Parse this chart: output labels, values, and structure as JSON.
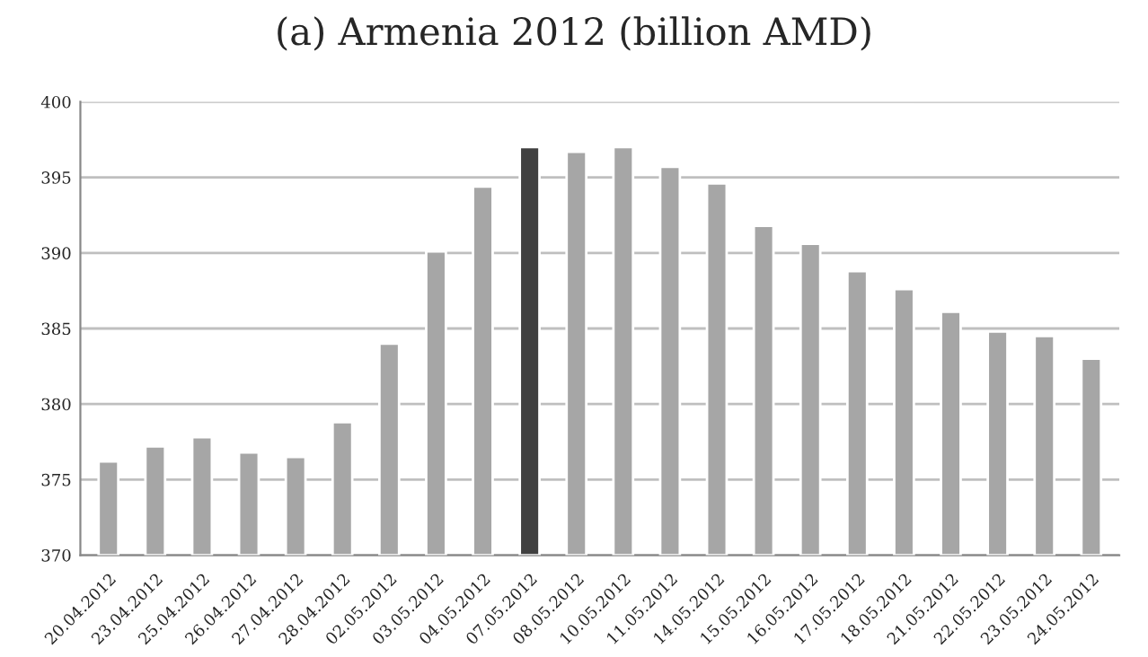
{
  "chart_data": {
    "type": "bar",
    "title": "(a) Armenia 2012 (billion AMD)",
    "categories": [
      "20.04.2012",
      "23.04.2012",
      "25.04.2012",
      "26.04.2012",
      "27.04.2012",
      "28.04.2012",
      "02.05.2012",
      "03.05.2012",
      "04.05.2012",
      "07.05.2012",
      "08.05.2012",
      "10.05.2012",
      "11.05.2012",
      "14.05.2012",
      "15.05.2012",
      "16.05.2012",
      "17.05.2012",
      "18.05.2012",
      "21.05.2012",
      "22.05.2012",
      "23.05.2012",
      "24.05.2012"
    ],
    "values": [
      376.2,
      377.2,
      377.8,
      376.8,
      376.5,
      378.8,
      384.0,
      390.1,
      394.4,
      397.0,
      396.7,
      397.0,
      395.7,
      394.6,
      391.8,
      390.6,
      388.8,
      387.6,
      386.1,
      384.8,
      384.5,
      383.0
    ],
    "colors": [
      "#a6a6a6",
      "#a6a6a6",
      "#a6a6a6",
      "#a6a6a6",
      "#a6a6a6",
      "#a6a6a6",
      "#a6a6a6",
      "#a6a6a6",
      "#a6a6a6",
      "#404040",
      "#a6a6a6",
      "#a6a6a6",
      "#a6a6a6",
      "#a6a6a6",
      "#a6a6a6",
      "#a6a6a6",
      "#a6a6a6",
      "#a6a6a6",
      "#a6a6a6",
      "#a6a6a6",
      "#a6a6a6",
      "#a6a6a6"
    ],
    "ylim": [
      370,
      400
    ],
    "yticks": [
      370,
      375,
      380,
      385,
      390,
      395,
      400
    ],
    "grid": "y",
    "legend": false
  }
}
